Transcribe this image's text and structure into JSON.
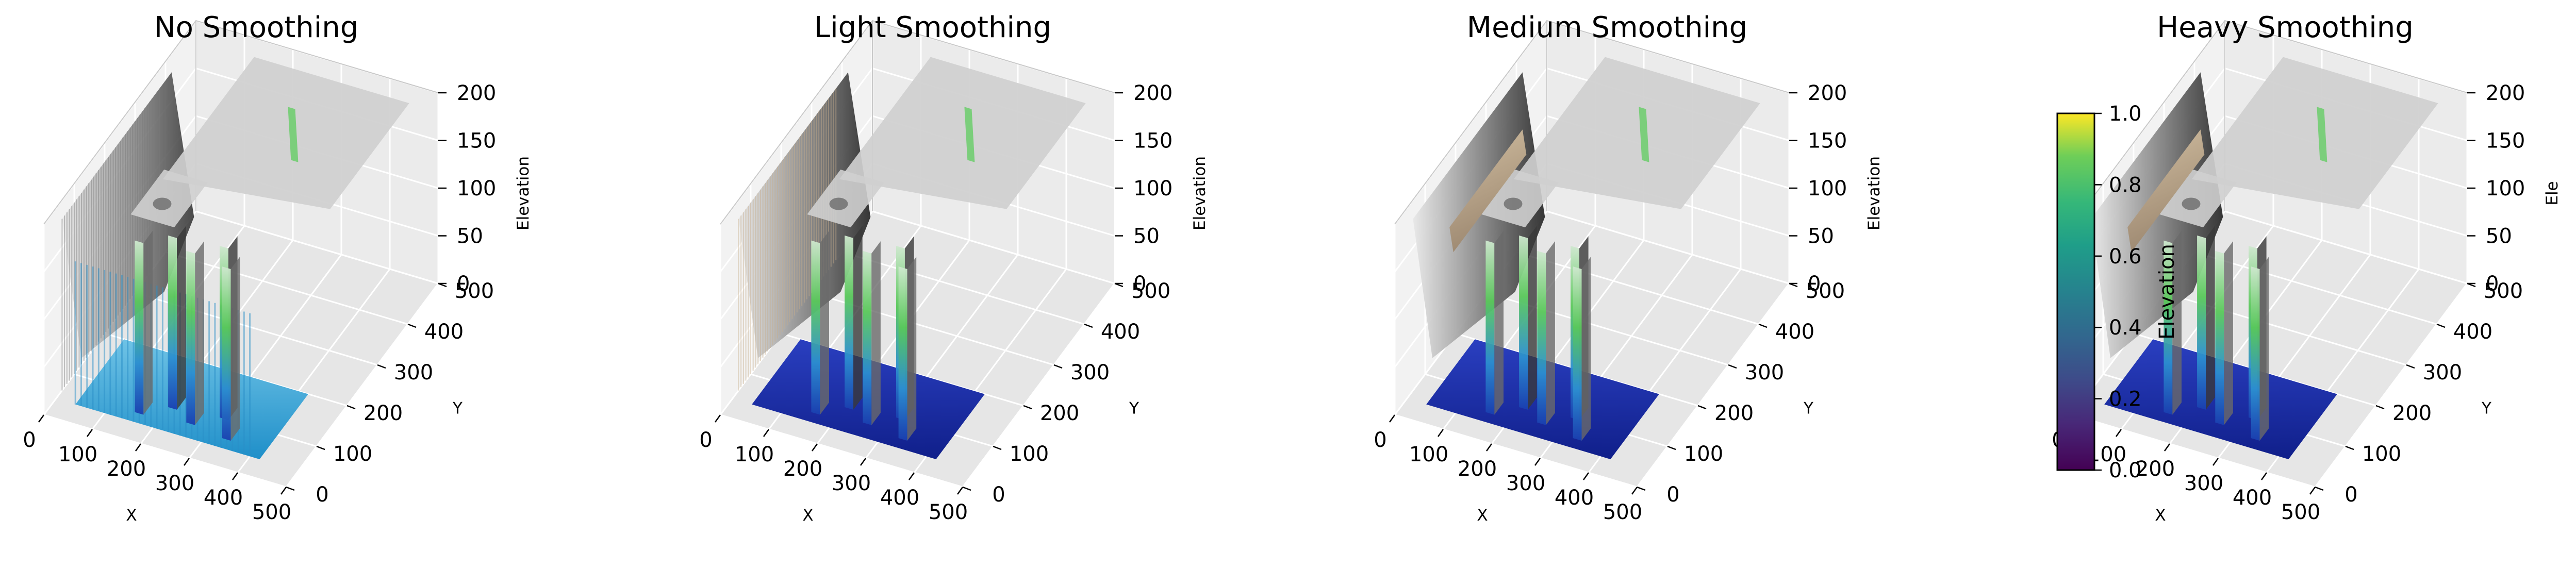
{
  "chart_data": [
    {
      "type": "surface3d",
      "title": "No Smoothing",
      "xlabel": "X",
      "ylabel": "Y",
      "zlabel": "Elevation",
      "xticks": [
        0,
        100,
        200,
        300,
        400,
        500
      ],
      "yticks": [
        0,
        100,
        200,
        300,
        400,
        500
      ],
      "zticks": [
        0,
        50,
        100,
        150,
        200
      ],
      "xlim": [
        0,
        500
      ],
      "ylim": [
        0,
        500
      ],
      "zlim": [
        0,
        200
      ],
      "smoothing": "none"
    },
    {
      "type": "surface3d",
      "title": "Light Smoothing",
      "xlabel": "X",
      "ylabel": "Y",
      "zlabel": "Elevation",
      "xticks": [
        0,
        100,
        200,
        300,
        400,
        500
      ],
      "yticks": [
        0,
        100,
        200,
        300,
        400,
        500
      ],
      "zticks": [
        0,
        50,
        100,
        150,
        200
      ],
      "xlim": [
        0,
        500
      ],
      "ylim": [
        0,
        500
      ],
      "zlim": [
        0,
        200
      ],
      "smoothing": "light"
    },
    {
      "type": "surface3d",
      "title": "Medium Smoothing",
      "xlabel": "X",
      "ylabel": "Y",
      "zlabel": "Elevation",
      "xticks": [
        0,
        100,
        200,
        300,
        400,
        500
      ],
      "yticks": [
        0,
        100,
        200,
        300,
        400,
        500
      ],
      "zticks": [
        0,
        50,
        100,
        150,
        200
      ],
      "xlim": [
        0,
        500
      ],
      "ylim": [
        0,
        500
      ],
      "zlim": [
        0,
        200
      ],
      "smoothing": "medium"
    },
    {
      "type": "surface3d",
      "title": "Heavy Smoothing",
      "xlabel": "X",
      "ylabel": "Y",
      "zlabel": "Ele",
      "xticks": [
        0,
        100,
        200,
        300,
        400,
        500
      ],
      "yticks": [
        0,
        100,
        200,
        300,
        400,
        500
      ],
      "zticks": [
        0,
        50,
        100,
        150,
        200
      ],
      "xlim": [
        0,
        500
      ],
      "ylim": [
        0,
        500
      ],
      "zlim": [
        0,
        200
      ],
      "smoothing": "heavy"
    }
  ],
  "colorbar": {
    "label": "Elevation",
    "ticks": [
      0.0,
      0.2,
      0.4,
      0.6,
      0.8,
      1.0
    ],
    "tick_labels": [
      "0.0",
      "0.2",
      "0.4",
      "0.6",
      "0.8",
      "1.0"
    ],
    "range": [
      0,
      1
    ],
    "colormap": "viridis"
  },
  "colors": {
    "pane_left": "#f2f2f2",
    "pane_back": "#ebebeb",
    "pane_floor": "#e6e6e6",
    "plateau": "#cfcfcf",
    "water_light": "#3c9bd0",
    "water_deep": "#1a2fa8",
    "cliff_dark": "#2b2b2b",
    "cliff_mid": "#8a8a8a",
    "vegetation": "#55cc55",
    "sand": "#c8ae8c"
  }
}
